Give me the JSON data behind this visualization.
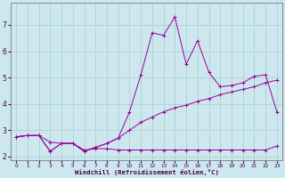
{
  "xlabel": "Windchill (Refroidissement éolien,°C)",
  "background_color": "#cce8ee",
  "grid_color": "#aacccc",
  "line_color": "#990099",
  "x_data": [
    0,
    1,
    2,
    3,
    4,
    5,
    6,
    7,
    8,
    9,
    10,
    11,
    12,
    13,
    14,
    15,
    16,
    17,
    18,
    19,
    20,
    21,
    22,
    23
  ],
  "line1_y": [
    2.75,
    2.8,
    2.8,
    2.55,
    2.5,
    2.5,
    2.25,
    2.3,
    2.3,
    2.25,
    2.25,
    2.25,
    2.25,
    2.25,
    2.25,
    2.25,
    2.25,
    2.25,
    2.25,
    2.25,
    2.25,
    2.25,
    2.25,
    2.4
  ],
  "line2_y": [
    2.75,
    2.8,
    2.8,
    2.2,
    2.5,
    2.5,
    2.2,
    2.35,
    2.5,
    2.7,
    3.0,
    3.3,
    3.5,
    3.7,
    3.85,
    3.95,
    4.1,
    4.2,
    4.35,
    4.45,
    4.55,
    4.65,
    4.8,
    4.9
  ],
  "line3_y": [
    2.75,
    2.8,
    2.8,
    2.2,
    2.5,
    2.5,
    2.2,
    2.35,
    2.5,
    2.7,
    3.7,
    5.1,
    6.7,
    6.6,
    7.3,
    5.5,
    6.4,
    5.2,
    4.65,
    4.7,
    4.8,
    5.05,
    5.1,
    3.7
  ],
  "xlim": [
    -0.5,
    23.5
  ],
  "ylim": [
    1.85,
    7.85
  ],
  "yticks": [
    2,
    3,
    4,
    5,
    6,
    7
  ],
  "xticks": [
    0,
    1,
    2,
    3,
    4,
    5,
    6,
    7,
    8,
    9,
    10,
    11,
    12,
    13,
    14,
    15,
    16,
    17,
    18,
    19,
    20,
    21,
    22,
    23
  ]
}
